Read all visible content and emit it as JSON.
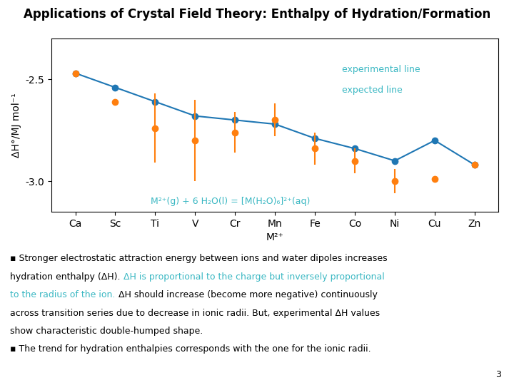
{
  "chart_data": {
    "type": "line",
    "title": "Applications of Crystal Field Theory: Enthalpy of Hydration/Formation",
    "x_label": "M²⁺",
    "y_label": "ΔH°/MJ mol⁻¹",
    "categories": [
      "Ca",
      "Sc",
      "Ti",
      "V",
      "Cr",
      "Mn",
      "Fe",
      "Co",
      "Ni",
      "Cu",
      "Zn"
    ],
    "series": [
      {
        "values": [
          -2.47,
          -2.54,
          -2.61,
          -2.68,
          -2.7,
          -2.72,
          -2.79,
          -2.84,
          -2.9,
          -2.8,
          -2.92
        ],
        "marker": "o",
        "line_style": "solid"
      },
      {
        "values": [
          -2.47,
          -2.61,
          -2.74,
          -2.8,
          -2.76,
          -2.7,
          -2.84,
          -2.9,
          -3.0,
          -2.99,
          -2.92
        ],
        "yerr": [
          0.0,
          0.0,
          0.17,
          0.2,
          0.1,
          0.08,
          0.08,
          0.06,
          0.06,
          0.0,
          0.0
        ],
        "marker": "o",
        "line_style": "none"
      }
    ],
    "ylim": [
      -3.15,
      -2.3
    ],
    "yticks": [
      -3.0,
      -2.5
    ],
    "grid": false,
    "annotations": [
      [
        {
          "text": "M²⁺(g) + 6 H₂O(l) = [M(H₂O)₆]²⁺(aq)",
          "color": "#3BB8C3"
        }
      ],
      [
        {
          "text": "experimental line",
          "color": "#3BB8C3"
        }
      ],
      [
        {
          "text": "expected line",
          "color": "#3BB8C3"
        }
      ],
      [
        {
          "text": "▪ Stronger electrostatic attraction energy between ions and water dipoles increases",
          "color": "#000000"
        }
      ],
      [
        {
          "text": "hydration enthalpy (ΔH). ",
          "color": "#000000"
        },
        {
          "text": "ΔH is proportional to the charge but inversely proportional",
          "color": "#3BB8C3"
        }
      ],
      [
        {
          "text": "to the radius of the ion.",
          "color": "#3BB8C3"
        },
        {
          "text": " ΔH should increase (become more negative) continuously",
          "color": "#000000"
        }
      ],
      [
        {
          "text": "across transition series due to decrease in ionic radii. But, experimental ΔH values",
          "color": "#000000"
        }
      ],
      [
        {
          "text": "show characteristic double-humped shape.",
          "color": "#000000"
        }
      ],
      [
        {
          "text": "▪ The trend for hydration enthalpies corresponds with the one for the ionic radii.",
          "color": "#000000"
        }
      ],
      [
        {
          "text": "3",
          "color": "#000000"
        }
      ]
    ]
  }
}
